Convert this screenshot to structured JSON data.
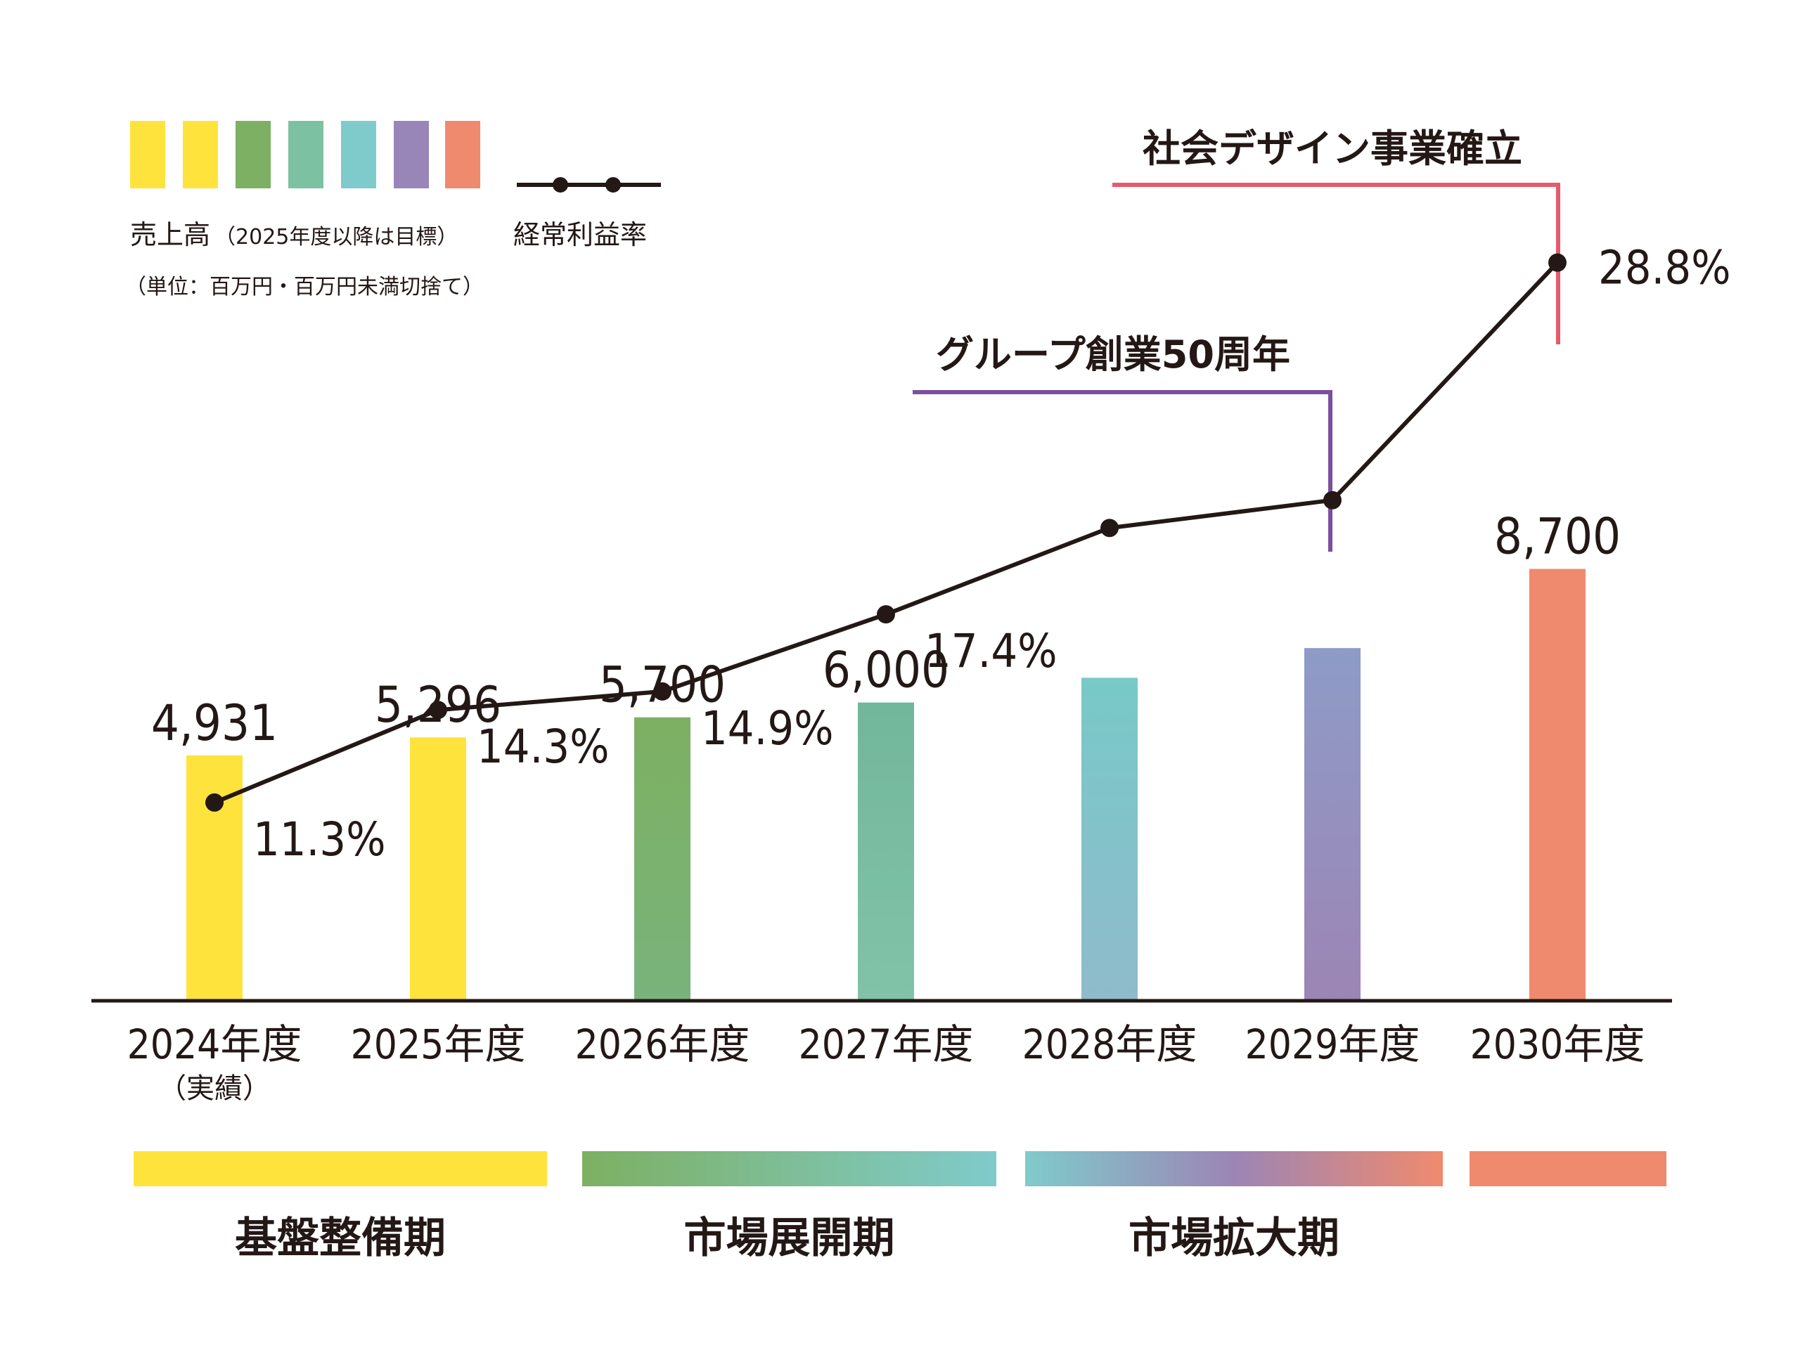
{
  "chart_data": {
    "type": "bar",
    "categories": [
      "2024年度",
      "2025年度",
      "2026年度",
      "2027年度",
      "2028年度",
      "2029年度",
      "2030年度"
    ],
    "category_notes": [
      "（実績）",
      "",
      "",
      "",
      "",
      "",
      ""
    ],
    "series": [
      {
        "name": "売上高",
        "kind": "bar",
        "values": [
          4931,
          5296,
          5700,
          6000,
          6500,
          7100,
          8700
        ],
        "labels": [
          "4,931",
          "5,296",
          "5,700",
          "6,000",
          "",
          "",
          "8,700"
        ]
      },
      {
        "name": "経常利益率",
        "kind": "line",
        "unit": "%",
        "values": [
          11.3,
          14.3,
          14.9,
          17.4,
          20.2,
          21.1,
          28.8
        ],
        "labels": [
          "11.3%",
          "14.3%",
          "14.9%",
          "17.4%",
          "",
          "",
          "28.8%"
        ]
      }
    ],
    "bar_colors": [
      [
        "#FFE33D",
        "#FFE33D"
      ],
      [
        "#FFE33D",
        "#FFE33D"
      ],
      [
        "#7DB062",
        "#79B37C"
      ],
      [
        "#72B69B",
        "#80C3A9"
      ],
      [
        "#78C9C8",
        "#8FBBCB"
      ],
      [
        "#8E9BC7",
        "#9C85B5"
      ],
      [
        "#F08A6E",
        "#F08A6E"
      ]
    ],
    "line_color": "#231815",
    "y_bar_range": [
      0,
      10000
    ],
    "y_line_range": [
      0,
      40
    ],
    "legend": {
      "swatch_colors": [
        "#FFE33D",
        "#FFE33D",
        "#7DB062",
        "#7DC1A3",
        "#7FCBCB",
        "#9886B8",
        "#F08A6E"
      ],
      "sales_label": "売上高",
      "sales_note": "（2025年度以降は目標）",
      "unit_note": "（単位：百万円・百万円未満切捨て）",
      "ratio_label": "経常利益率"
    },
    "annotations": [
      {
        "text": "社会デザイン事業確立",
        "category": "2030年度",
        "color": "#E55A6E"
      },
      {
        "text": "グループ創業50周年",
        "category": "2029年度",
        "color": "#7B4F9E"
      }
    ],
    "phases": [
      {
        "label": "基盤整備期",
        "colors": [
          "#FFE33D",
          "#FFE33D"
        ],
        "span": [
          "2024年度",
          "2025年度"
        ]
      },
      {
        "label": "市場展開期",
        "colors": [
          "#7DB062",
          "#7FCBCB"
        ],
        "span": [
          "2026年度",
          "2027年度"
        ]
      },
      {
        "label": "市場拡大期",
        "colors": [
          "#7FCBCB",
          "#9C85B5",
          "#F08A6E"
        ],
        "span": [
          "2028年度",
          "2029年度"
        ]
      },
      {
        "label": "",
        "colors": [
          "#F08A6E",
          "#F08A6E"
        ],
        "span": [
          "2030年度",
          "2030年度"
        ]
      }
    ]
  }
}
